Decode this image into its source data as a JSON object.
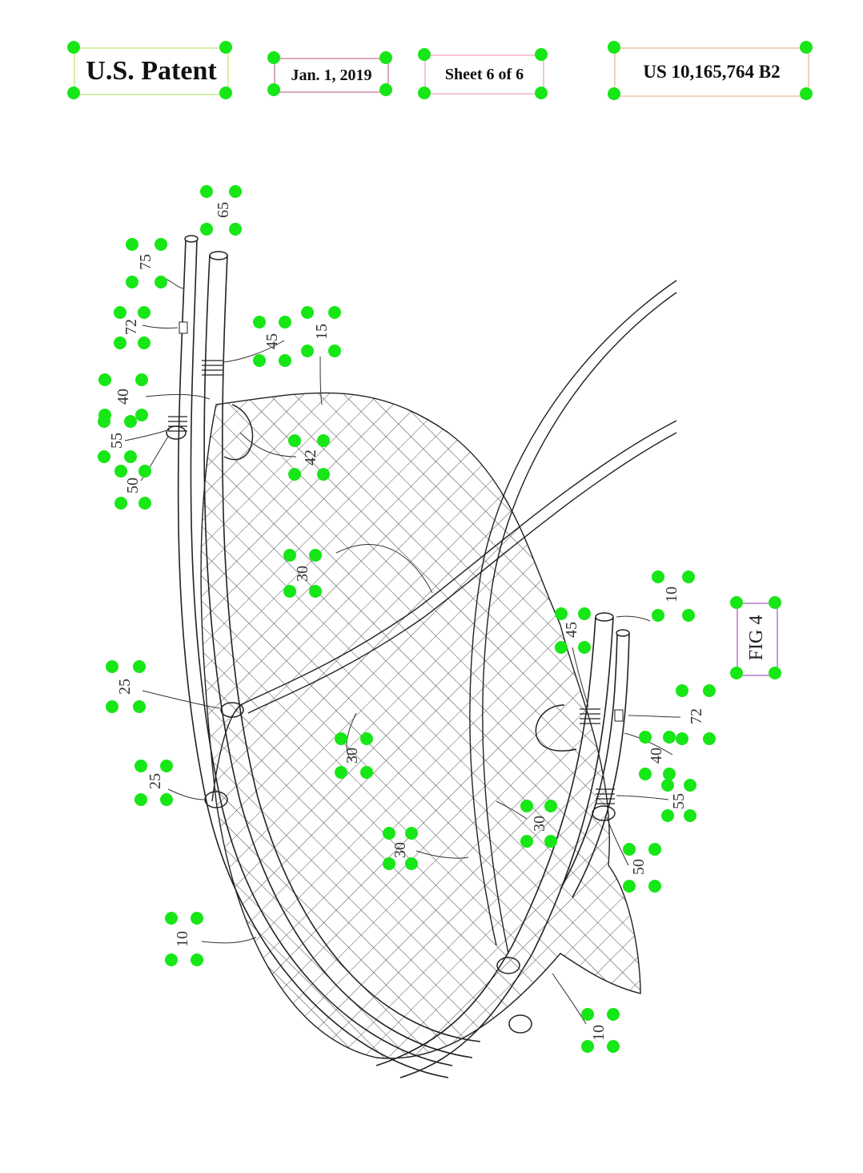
{
  "header": {
    "left_title": "U.S. Patent",
    "date": "Jan. 1, 2019",
    "sheet": "Sheet 6 of 6",
    "patent_number": "US 10,165,764 B2"
  },
  "figure": {
    "label": "FIG 4",
    "reference_numerals": [
      "65",
      "75",
      "72",
      "45",
      "15",
      "40",
      "55",
      "50",
      "42",
      "30",
      "10",
      "45",
      "25",
      "30",
      "25",
      "40",
      "72",
      "55",
      "30",
      "30",
      "50",
      "10",
      "10"
    ]
  },
  "colors": {
    "annotation_point": "#17e617",
    "line_art": "#222222"
  }
}
